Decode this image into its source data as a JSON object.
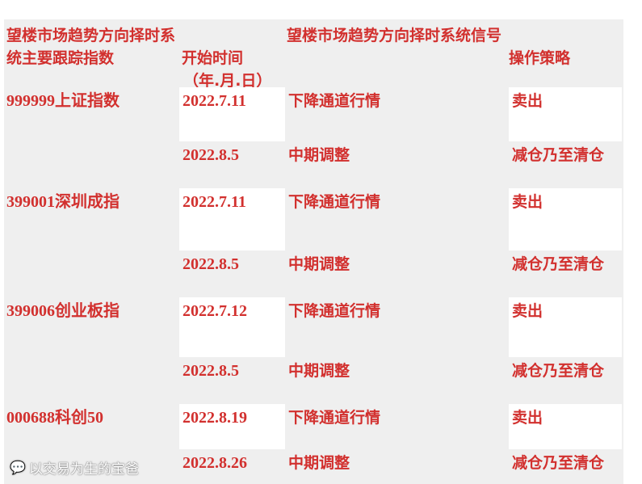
{
  "header": {
    "col1": "望楼市场趋势方向择时系统主要跟踪指数",
    "col2_line1": "开始时间",
    "col2_line2": "（年.月.日）",
    "col3": "望楼市场趋势方向择时系统信号",
    "col4": "操作策略"
  },
  "groups": [
    {
      "index": "999999上证指数",
      "rows": [
        {
          "date": "2022.7.11",
          "signal": "下降通道行情",
          "strategy": "卖出"
        },
        {
          "date": "2022.8.5",
          "signal": "中期调整",
          "strategy": "减仓乃至清仓"
        }
      ]
    },
    {
      "index": "399001深圳成指",
      "rows": [
        {
          "date": "2022.7.11",
          "signal": "下降通道行情",
          "strategy": "卖出"
        },
        {
          "date": "2022.8.5",
          "signal": "中期调整",
          "strategy": "减仓乃至清仓"
        }
      ]
    },
    {
      "index": "399006创业板指",
      "rows": [
        {
          "date": "2022.7.12",
          "signal": "下降通道行情",
          "strategy": "卖出"
        },
        {
          "date": "2022.8.5",
          "signal": "中期调整",
          "strategy": "减仓乃至清仓"
        }
      ]
    },
    {
      "index": "000688科创50",
      "rows": [
        {
          "date": "2022.8.19",
          "signal": "下降通道行情",
          "strategy": "卖出"
        },
        {
          "date": "2022.8.26",
          "signal": "中期调整",
          "strategy": "减仓乃至清仓"
        }
      ]
    }
  ],
  "watermark": {
    "icon": "wechat-icon",
    "text": "以交易为生的宝爸"
  },
  "colors": {
    "text": "#d2302e",
    "cell_gray": "#efefef",
    "cell_white": "#ffffff"
  }
}
